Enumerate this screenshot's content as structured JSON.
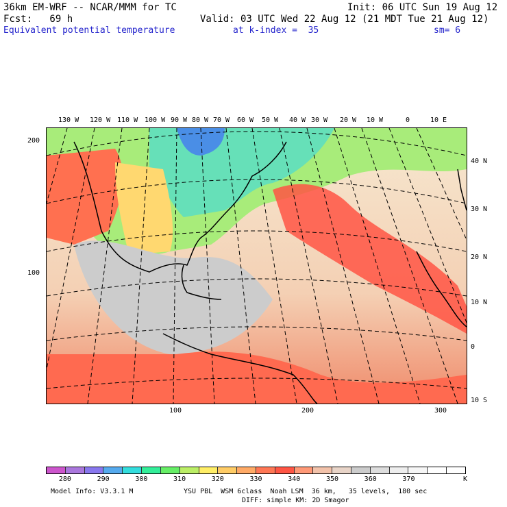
{
  "header": {
    "model_line": "36km EM-WRF -- NCAR/MMM for TC",
    "init": "Init: 06 UTC Sun 19 Aug 12",
    "fcst": "Fcst:   69 h",
    "valid": "Valid: 03 UTC Wed 22 Aug 12 (21 MDT Tue 21 Aug 12)",
    "field": "Equivalent potential temperature",
    "level": "at k-index =  35",
    "smooth": "sm= 6"
  },
  "lon_labels": [
    "130 W",
    "120 W",
    "110 W",
    "100 W",
    "90 W",
    "80 W",
    "70 W",
    "60 W",
    "50 W",
    "40 W",
    "30 W",
    "20 W",
    "10 W",
    "0",
    "10 E"
  ],
  "lat_labels": [
    "40 N",
    "30 N",
    "20 N",
    "10 N",
    "0",
    "10 S"
  ],
  "grid_y_labels": [
    "200",
    "100"
  ],
  "grid_x_labels": [
    "100",
    "200",
    "300"
  ],
  "colorbar": {
    "colors": [
      "#cc55cc",
      "#aa77dd",
      "#8877ee",
      "#55aaee",
      "#33dddd",
      "#33ee99",
      "#66ee66",
      "#bbee66",
      "#ffee66",
      "#ffcc66",
      "#ffaa66",
      "#ff7755",
      "#ff5544",
      "#ff9977",
      "#f2c2aa",
      "#e8d4c8",
      "#cccccc",
      "#dddddd",
      "#eeeeee",
      "#f6f6f6",
      "#ffffff",
      "#ffffff"
    ],
    "labels": [
      "280",
      "290",
      "300",
      "310",
      "320",
      "330",
      "340",
      "350",
      "360",
      "370"
    ],
    "unit": "K"
  },
  "footer": {
    "model_info": "Model Info: V3.3.1 M",
    "physics": "YSU PBL  WSM 6class  Noah LSM  36 km,   35 levels,  180 sec",
    "diffusion": "DIFF: simple KM: 2D Smagor"
  }
}
